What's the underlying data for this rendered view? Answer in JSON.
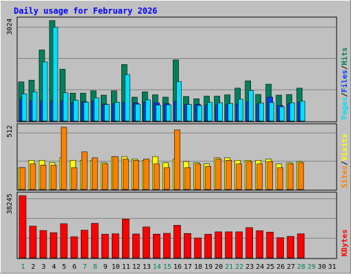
{
  "title": "Daily usage for February 2026",
  "colors": {
    "background": "#C0C0C0",
    "title": "#0000FF",
    "hits": "#00805C",
    "files": "#0040FF",
    "pages": "#00E0FF",
    "visits": "#FFFF00",
    "sites": "#FF8000",
    "kbytes": "#FF0000",
    "weekend_label": "#00805C",
    "weekday_label": "#000000"
  },
  "chart_data": [
    {
      "type": "bar",
      "name": "hits-files-pages",
      "x": [
        1,
        2,
        3,
        4,
        5,
        6,
        7,
        8,
        9,
        10,
        11,
        12,
        13,
        14,
        15,
        16,
        17,
        18,
        19,
        20,
        21,
        22,
        23,
        24,
        25,
        26,
        27,
        28,
        29,
        30,
        31
      ],
      "y_max_label": "3024",
      "ymax": 3024,
      "legend": [
        {
          "key": "pages",
          "label": "Pages"
        },
        {
          "key": "files",
          "label": "Files"
        },
        {
          "key": "hits",
          "label": "Hits"
        }
      ],
      "series": [
        {
          "key": "hits",
          "values": [
            1180,
            1230,
            2140,
            3024,
            1560,
            840,
            840,
            910,
            780,
            910,
            1700,
            720,
            880,
            790,
            720,
            1840,
            740,
            670,
            750,
            750,
            790,
            990,
            1210,
            800,
            1110,
            780,
            800,
            990,
            null,
            null,
            null
          ]
        },
        {
          "key": "files",
          "values": [
            660,
            610,
            600,
            600,
            600,
            550,
            580,
            600,
            510,
            520,
            560,
            540,
            560,
            550,
            520,
            590,
            500,
            500,
            480,
            480,
            490,
            510,
            580,
            520,
            720,
            470,
            520,
            570,
            null,
            null,
            null
          ]
        },
        {
          "key": "pages",
          "values": [
            820,
            880,
            1780,
            2820,
            850,
            630,
            570,
            700,
            500,
            570,
            1400,
            510,
            640,
            480,
            490,
            1190,
            500,
            470,
            560,
            550,
            530,
            660,
            920,
            540,
            560,
            430,
            550,
            600,
            null,
            null,
            null
          ]
        }
      ]
    },
    {
      "type": "bar",
      "name": "visits-sites",
      "x": [
        1,
        2,
        3,
        4,
        5,
        6,
        7,
        8,
        9,
        10,
        11,
        12,
        13,
        14,
        15,
        16,
        17,
        18,
        19,
        20,
        21,
        22,
        23,
        24,
        25,
        26,
        27,
        28,
        29,
        30,
        31
      ],
      "y_max_label": "512",
      "ymax": 512,
      "legend": [
        {
          "key": "sites",
          "label": "Sites"
        },
        {
          "key": "visits",
          "label": "Visits"
        }
      ],
      "series": [
        {
          "key": "visits",
          "values": [
            180,
            240,
            240,
            220,
            260,
            240,
            240,
            240,
            220,
            270,
            270,
            250,
            240,
            270,
            220,
            250,
            230,
            220,
            210,
            260,
            260,
            240,
            240,
            240,
            250,
            210,
            220,
            230,
            null,
            null,
            null
          ]
        },
        {
          "key": "sites",
          "values": [
            180,
            210,
            200,
            200,
            512,
            180,
            310,
            260,
            210,
            270,
            250,
            240,
            250,
            210,
            180,
            490,
            180,
            210,
            190,
            250,
            240,
            210,
            230,
            210,
            230,
            180,
            210,
            220,
            null,
            null,
            null
          ]
        }
      ]
    },
    {
      "type": "bar",
      "name": "kbytes",
      "x": [
        1,
        2,
        3,
        4,
        5,
        6,
        7,
        8,
        9,
        10,
        11,
        12,
        13,
        14,
        15,
        16,
        17,
        18,
        19,
        20,
        21,
        22,
        23,
        24,
        25,
        26,
        27,
        28,
        29,
        30,
        31
      ],
      "y_max_label": "38245",
      "ymax": 38245,
      "legend": [
        {
          "key": "kbytes",
          "label": "KBytes"
        }
      ],
      "series": [
        {
          "key": "kbytes",
          "values": [
            38245,
            19500,
            16800,
            15500,
            21000,
            13000,
            17000,
            21200,
            14500,
            14800,
            23800,
            14700,
            19000,
            14600,
            15100,
            20000,
            15000,
            12200,
            14500,
            16000,
            16000,
            16000,
            18600,
            16700,
            15800,
            12400,
            13200,
            14800,
            null,
            null,
            null
          ]
        }
      ]
    }
  ],
  "days": [
    "1",
    "2",
    "3",
    "4",
    "5",
    "6",
    "7",
    "8",
    "9",
    "10",
    "11",
    "12",
    "13",
    "14",
    "15",
    "16",
    "17",
    "18",
    "19",
    "20",
    "21",
    "22",
    "23",
    "24",
    "25",
    "26",
    "27",
    "28",
    "29",
    "30",
    "31"
  ],
  "weekend_days": [
    1,
    7,
    8,
    14,
    15,
    21,
    22,
    28,
    29
  ]
}
